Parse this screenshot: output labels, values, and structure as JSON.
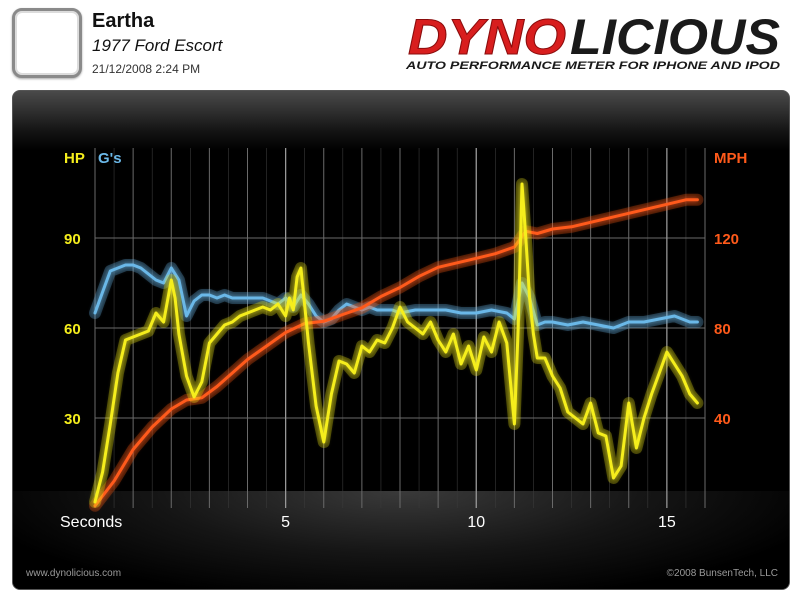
{
  "header": {
    "car_name": "Eartha",
    "car_model": "1977 Ford Escort",
    "date": "21/12/2008 2:24 PM",
    "brand_part1": "DYNO",
    "brand_part2": "LICIOUS",
    "tagline": "AUTO PERFORMANCE METER FOR IPHONE AND IPOD"
  },
  "footer": {
    "website": "www.dynolicious.com",
    "copyright": "©2008 BunsenTech, LLC"
  },
  "colors": {
    "hp": "#f5ee1c",
    "gs": "#6bb8e8",
    "mph": "#ff5a1a",
    "brand_red": "#d81e1e",
    "brand_dark": "#1a1a1a"
  },
  "chart_data": {
    "type": "line",
    "xlabel": "Seconds",
    "x_ticks": [
      5,
      10,
      15
    ],
    "xlim": [
      0,
      16
    ],
    "left_axis_labels": [
      "HP",
      "G's"
    ],
    "left_ticks": [
      30,
      60,
      90
    ],
    "left_lim": [
      0,
      120
    ],
    "right_axis_label": "MPH",
    "right_ticks": [
      40,
      80,
      120
    ],
    "right_lim": [
      0,
      160
    ],
    "grid": true,
    "series": [
      {
        "name": "HP",
        "axis": "left",
        "x": [
          0,
          0.2,
          0.4,
          0.6,
          0.8,
          1.0,
          1.2,
          1.4,
          1.6,
          1.8,
          2.0,
          2.1,
          2.2,
          2.4,
          2.6,
          2.8,
          3.0,
          3.2,
          3.4,
          3.6,
          3.8,
          4.0,
          4.2,
          4.4,
          4.6,
          4.8,
          5.0,
          5.1,
          5.2,
          5.3,
          5.4,
          5.6,
          5.8,
          6.0,
          6.2,
          6.4,
          6.6,
          6.8,
          7.0,
          7.2,
          7.4,
          7.6,
          7.8,
          8.0,
          8.2,
          8.4,
          8.6,
          8.8,
          9.0,
          9.2,
          9.4,
          9.6,
          9.8,
          10.0,
          10.2,
          10.4,
          10.6,
          10.8,
          11.0,
          11.1,
          11.2,
          11.3,
          11.4,
          11.5,
          11.6,
          11.8,
          12.0,
          12.2,
          12.4,
          12.6,
          12.8,
          13.0,
          13.2,
          13.4,
          13.6,
          13.8,
          14.0,
          14.2,
          14.4,
          14.6,
          14.8,
          15.0,
          15.2,
          15.4,
          15.6,
          15.8
        ],
        "y": [
          2,
          12,
          28,
          45,
          56,
          57,
          58,
          59,
          65,
          62,
          76,
          70,
          58,
          44,
          37,
          42,
          55,
          58,
          61,
          62,
          64,
          65,
          66,
          67,
          66,
          68,
          64,
          70,
          66,
          77,
          80,
          55,
          34,
          22,
          38,
          49,
          48,
          45,
          54,
          52,
          56,
          55,
          60,
          67,
          62,
          60,
          58,
          62,
          56,
          52,
          58,
          48,
          54,
          46,
          57,
          52,
          62,
          55,
          28,
          60,
          108,
          90,
          70,
          58,
          50,
          50,
          44,
          40,
          32,
          30,
          28,
          35,
          25,
          24,
          10,
          14,
          35,
          20,
          30,
          38,
          45,
          52,
          48,
          44,
          38,
          35
        ]
      },
      {
        "name": "G's",
        "axis": "left",
        "x": [
          0,
          0.2,
          0.4,
          0.6,
          0.8,
          1.0,
          1.2,
          1.4,
          1.6,
          1.8,
          2.0,
          2.2,
          2.4,
          2.6,
          2.8,
          3.0,
          3.2,
          3.4,
          3.6,
          3.8,
          4.0,
          4.2,
          4.4,
          4.6,
          4.8,
          5.0,
          5.2,
          5.4,
          5.6,
          5.8,
          6.0,
          6.2,
          6.4,
          6.6,
          6.8,
          7.0,
          7.2,
          7.4,
          7.6,
          7.8,
          8.0,
          8.4,
          8.8,
          9.2,
          9.6,
          10.0,
          10.4,
          10.8,
          11.0,
          11.2,
          11.4,
          11.6,
          11.8,
          12.0,
          12.4,
          12.8,
          13.2,
          13.6,
          14.0,
          14.4,
          14.8,
          15.2,
          15.6,
          15.8
        ],
        "y": [
          65,
          72,
          79,
          80,
          81,
          81,
          80,
          78,
          76,
          75,
          80,
          76,
          64,
          69,
          71,
          71,
          70,
          71,
          70,
          70,
          70,
          70,
          70,
          69,
          68,
          70,
          67,
          71,
          68,
          64,
          62,
          63,
          66,
          68,
          67,
          66,
          67,
          66,
          66,
          66,
          65,
          66,
          66,
          66,
          65,
          65,
          66,
          65,
          63,
          75,
          70,
          61,
          62,
          62,
          61,
          62,
          61,
          60,
          62,
          62,
          63,
          64,
          62,
          62
        ]
      },
      {
        "name": "MPH",
        "axis": "right",
        "x": [
          0,
          0.5,
          1.0,
          1.5,
          2.0,
          2.4,
          2.8,
          3.2,
          3.6,
          4.0,
          4.5,
          5.0,
          5.5,
          6.0,
          6.5,
          7.0,
          7.5,
          8.0,
          8.5,
          9.0,
          9.5,
          10.0,
          10.5,
          11.0,
          11.3,
          11.6,
          12.0,
          12.5,
          13.0,
          13.5,
          14.0,
          14.5,
          15.0,
          15.5,
          15.8
        ],
        "y": [
          1,
          12,
          26,
          36,
          44,
          48,
          49,
          54,
          60,
          66,
          72,
          78,
          82,
          83,
          86,
          89,
          94,
          98,
          103,
          107,
          109,
          111,
          113,
          116,
          123,
          122,
          124,
          125,
          127,
          129,
          131,
          133,
          135,
          137,
          137
        ]
      }
    ]
  }
}
